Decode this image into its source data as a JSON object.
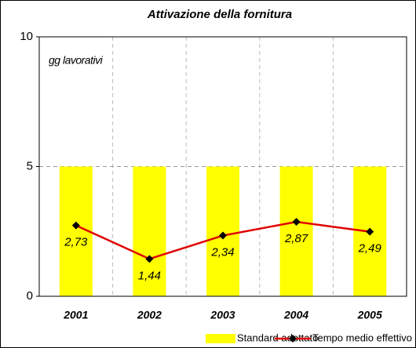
{
  "chart_data": {
    "type": "bar",
    "title": "Attivazione della fornitura",
    "annotation": "gg lavorativi",
    "categories": [
      "2001",
      "2002",
      "2003",
      "2004",
      "2005"
    ],
    "series": [
      {
        "name": "Standard adottato",
        "type": "bar",
        "color": "#ffff00",
        "values": [
          5,
          5,
          5,
          5,
          5
        ]
      },
      {
        "name": "Tempo medio effettivo",
        "type": "line",
        "color": "#e00000",
        "marker_color": "#000000",
        "values": [
          2.73,
          1.44,
          2.34,
          2.87,
          2.49
        ],
        "value_labels": [
          "2,73",
          "1,44",
          "2,34",
          "2,87",
          "2,49"
        ]
      }
    ],
    "ylim": [
      0,
      10
    ],
    "yticks": [
      0,
      5,
      10
    ],
    "grid": true,
    "legend": "bottom"
  }
}
